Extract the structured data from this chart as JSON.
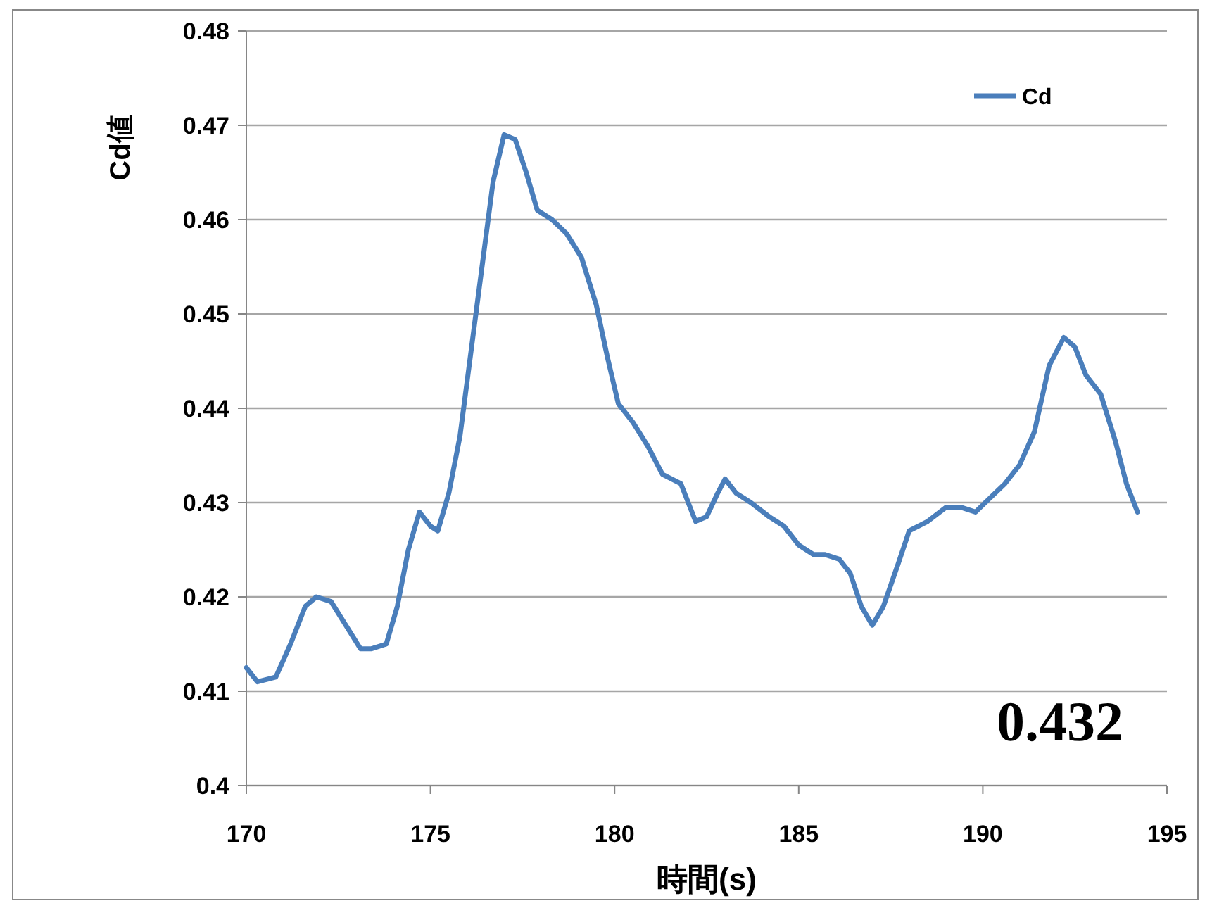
{
  "chart_data": {
    "type": "line",
    "xlabel": "時間(s)",
    "ylabel": "Cd値",
    "x": [
      170.0,
      170.3,
      170.8,
      171.2,
      171.6,
      171.9,
      172.3,
      172.7,
      173.1,
      173.4,
      173.8,
      174.1,
      174.4,
      174.7,
      175.0,
      175.2,
      175.5,
      175.8,
      176.1,
      176.4,
      176.7,
      177.0,
      177.3,
      177.6,
      177.9,
      178.3,
      178.7,
      179.1,
      179.5,
      179.8,
      180.1,
      180.5,
      180.9,
      181.3,
      181.8,
      182.2,
      182.5,
      182.8,
      183.0,
      183.3,
      183.7,
      184.2,
      184.6,
      185.0,
      185.4,
      185.7,
      186.1,
      186.4,
      186.7,
      187.0,
      187.3,
      187.7,
      188.0,
      188.5,
      189.0,
      189.4,
      189.8,
      190.2,
      190.6,
      191.0,
      191.4,
      191.8,
      192.2,
      192.5,
      192.8,
      193.2,
      193.6,
      193.9,
      194.2
    ],
    "series": [
      {
        "name": "Cd",
        "color": "#4a7ebb",
        "values": [
          0.4125,
          0.411,
          0.4115,
          0.415,
          0.419,
          0.42,
          0.4195,
          0.417,
          0.4145,
          0.4145,
          0.415,
          0.419,
          0.425,
          0.429,
          0.4275,
          0.427,
          0.431,
          0.437,
          0.446,
          0.455,
          0.464,
          0.469,
          0.4685,
          0.465,
          0.461,
          0.46,
          0.4585,
          0.456,
          0.451,
          0.4455,
          0.4405,
          0.4385,
          0.436,
          0.433,
          0.432,
          0.428,
          0.4285,
          0.431,
          0.4325,
          0.431,
          0.43,
          0.4285,
          0.4275,
          0.4255,
          0.4245,
          0.4245,
          0.424,
          0.4225,
          0.419,
          0.417,
          0.419,
          0.4235,
          0.427,
          0.428,
          0.4295,
          0.4295,
          0.429,
          0.4305,
          0.432,
          0.434,
          0.4375,
          0.4445,
          0.4475,
          0.4465,
          0.4435,
          0.4415,
          0.4365,
          0.432,
          0.429
        ]
      }
    ],
    "xlim": [
      170,
      195
    ],
    "xticks": [
      170,
      175,
      180,
      185,
      190,
      195
    ],
    "ylim": [
      0.4,
      0.48
    ],
    "yticks": [
      0.4,
      0.41,
      0.42,
      0.43,
      0.44,
      0.45,
      0.46,
      0.47,
      0.48
    ],
    "grid": "y",
    "legend": "top right",
    "marker": "none",
    "line_style": "solid",
    "annotations": [
      "0.432"
    ]
  }
}
